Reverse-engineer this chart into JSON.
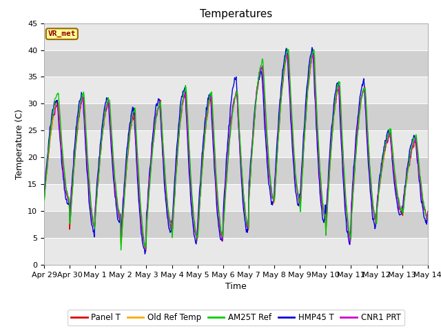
{
  "title": "Temperatures",
  "xlabel": "Time",
  "ylabel": "Temperature (C)",
  "ylim": [
    0,
    45
  ],
  "legend_labels": [
    "Panel T",
    "Old Ref Temp",
    "AM25T Ref",
    "HMP45 T",
    "CNR1 PRT"
  ],
  "legend_colors": [
    "#dd0000",
    "#ffaa00",
    "#00cc00",
    "#0000dd",
    "#cc00cc"
  ],
  "station_label": "VR_met",
  "background_color": "#ffffff",
  "plot_bg_color": "#e8e8e8",
  "band_color": "#d0d0d0",
  "title_fontsize": 11,
  "axis_fontsize": 9,
  "tick_fontsize": 8,
  "xtick_labels": [
    "Apr 29",
    "Apr 30",
    "May 1",
    "May 2",
    "May 3",
    "May 4",
    "May 5",
    "May 6",
    "May 7",
    "May 8",
    "May 9",
    "May 10",
    "May 11",
    "May 12",
    "May 13",
    "May 14"
  ],
  "day_maxes": [
    30,
    31,
    30,
    28,
    30,
    32,
    31,
    32,
    37,
    39,
    39,
    33,
    33,
    24,
    23
  ],
  "day_mins": [
    12,
    7,
    9,
    3,
    7,
    5,
    5,
    7,
    12,
    12,
    9,
    5,
    8,
    10,
    9
  ],
  "green_extra": [
    2,
    1,
    1,
    1,
    0,
    1,
    1,
    0,
    1,
    1,
    1,
    1,
    0,
    1,
    1
  ],
  "blue_phase": 0.04,
  "purple_phase": 0.015
}
